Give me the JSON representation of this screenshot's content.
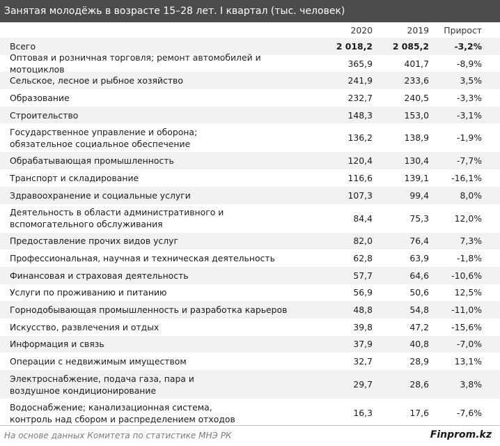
{
  "title": "Занятая молодёжь в возрасте 15–28 лет. I квартал (тыс. человек)",
  "columns": [
    "2020",
    "2019",
    "Прирост"
  ],
  "rows": [
    {
      "name": "Всего",
      "v2020": "2 018,2",
      "v2019": "2 085,2",
      "growth": "-3,2%"
    },
    {
      "name": "Оптовая и розничная торговля; ремонт автомобилей и мотоциклов",
      "v2020": "365,9",
      "v2019": "401,7",
      "growth": "-8,9%"
    },
    {
      "name": "Сельское, лесное и рыбное хозяйство",
      "v2020": "241,9",
      "v2019": "233,6",
      "growth": "3,5%"
    },
    {
      "name": "Образование",
      "v2020": "232,7",
      "v2019": "240,5",
      "growth": "-3,3%"
    },
    {
      "name": "Строительство",
      "v2020": "148,3",
      "v2019": "153,0",
      "growth": "-3,1%"
    },
    {
      "name": "Государственное управление и оборона;\nобязательное социальное обеспечение",
      "v2020": "136,2",
      "v2019": "138,9",
      "growth": "-1,9%"
    },
    {
      "name": "Обрабатывающая промышленность",
      "v2020": "120,4",
      "v2019": "130,4",
      "growth": "-7,7%"
    },
    {
      "name": "Транспорт и складирование",
      "v2020": "116,6",
      "v2019": "139,1",
      "growth": "-16,1%"
    },
    {
      "name": "Здравоохранение и социальные услуги",
      "v2020": "107,3",
      "v2019": "99,4",
      "growth": "8,0%"
    },
    {
      "name": "Деятельность в области административного и\nвспомогательного обслуживания",
      "v2020": "84,4",
      "v2019": "75,3",
      "growth": "12,0%"
    },
    {
      "name": "Предоставление прочих видов услуг",
      "v2020": "82,0",
      "v2019": "76,4",
      "growth": "7,3%"
    },
    {
      "name": "Профессиональная, научная и техническая деятельность",
      "v2020": "62,8",
      "v2019": "63,9",
      "growth": "-1,8%"
    },
    {
      "name": "Финансовая и страховая деятельность",
      "v2020": "57,7",
      "v2019": "64,6",
      "growth": "-10,6%"
    },
    {
      "name": "Услуги по проживанию и питанию",
      "v2020": "56,9",
      "v2019": "50,6",
      "growth": "12,5%"
    },
    {
      "name": "Горнодобывающая промышленность и разработка карьеров",
      "v2020": "48,8",
      "v2019": "54,8",
      "growth": "-11,0%"
    },
    {
      "name": "Искусство, развлечения и отдых",
      "v2020": "39,8",
      "v2019": "47,2",
      "growth": "-15,6%"
    },
    {
      "name": "Информация и связь",
      "v2020": "37,9",
      "v2019": "40,8",
      "growth": "-7,0%"
    },
    {
      "name": "Операции с недвижимым имуществом",
      "v2020": "32,7",
      "v2019": "28,9",
      "growth": "13,1%"
    },
    {
      "name": "Электроснабжение, подача газа, пара и\nвоздушное кондиционирование",
      "v2020": "29,7",
      "v2019": "28,6",
      "growth": "3,8%"
    },
    {
      "name": "Водоснабжение; канализационная система,\nконтроль над сбором и распределением отходов",
      "v2020": "16,3",
      "v2019": "17,6",
      "growth": "-7,6%"
    }
  ],
  "footer": {
    "source": "На основе данных Комитета по статистике МНЭ РК",
    "brand": "Finprom.kz"
  }
}
